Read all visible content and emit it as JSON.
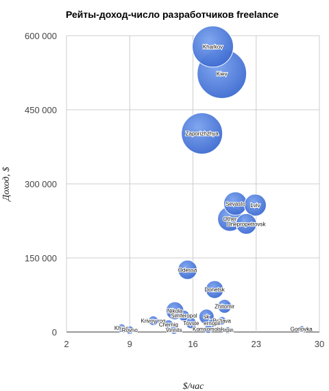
{
  "chart_data": {
    "type": "scatter",
    "variant": "bubble",
    "title": "Рейты-доход-число разработчиков freelance",
    "xlabel": "$/час",
    "ylabel": "Доход, $",
    "xlim": [
      2,
      30
    ],
    "ylim": [
      0,
      600000
    ],
    "xticks": [
      2,
      9,
      16,
      23,
      30
    ],
    "yticks": [
      0,
      150000,
      300000,
      450000,
      600000
    ],
    "ytick_labels": [
      "0",
      "150 000",
      "300 000",
      "450 000",
      "600 000"
    ],
    "grid": true,
    "legend": "none",
    "colors": {
      "bubble": "#3d6fd6",
      "bubble_light": "#6b95ea",
      "bubble_edge": "#ffffff"
    },
    "points": [
      {
        "label": "Kharkov",
        "x": 18.2,
        "y": 578000,
        "size": 30
      },
      {
        "label": "Kiev",
        "x": 19.2,
        "y": 523000,
        "size": 36
      },
      {
        "label": "Zaporizhzhya",
        "x": 17.0,
        "y": 402000,
        "size": 30
      },
      {
        "label": "Sevastopol",
        "x": 20.7,
        "y": 260000,
        "size": 17
      },
      {
        "label": "Lviv",
        "x": 22.9,
        "y": 257000,
        "size": 16
      },
      {
        "label": "Other",
        "x": 20.1,
        "y": 229000,
        "size": 18
      },
      {
        "label": "Dnepropetrovsk",
        "x": 21.9,
        "y": 219000,
        "size": 15
      },
      {
        "label": "Odessa",
        "x": 15.4,
        "y": 126000,
        "size": 14
      },
      {
        "label": "Donetsk",
        "x": 18.4,
        "y": 86000,
        "size": 13
      },
      {
        "label": "Zhitomir",
        "x": 19.5,
        "y": 52000,
        "size": 10
      },
      {
        "label": "Nikolaev",
        "x": 14.0,
        "y": 43000,
        "size": 13
      },
      {
        "label": "Simferopol",
        "x": 15.0,
        "y": 33000,
        "size": 8
      },
      {
        "label": "Ivanofrank",
        "x": 17.5,
        "y": 31000,
        "size": 11
      },
      {
        "label": "Krivoy rog",
        "x": 11.6,
        "y": 23000,
        "size": 7
      },
      {
        "label": "Poltava",
        "x": 19.2,
        "y": 23000,
        "size": 6
      },
      {
        "label": "Toystery",
        "x": 15.8,
        "y": 18000,
        "size": 8
      },
      {
        "label": "Chernigov",
        "x": 13.3,
        "y": 15000,
        "size": 7
      },
      {
        "label": "Chernopil",
        "x": 18.1,
        "y": 18000,
        "size": 6
      },
      {
        "label": "Khmelnitsk",
        "x": 8.1,
        "y": 8000,
        "size": 6
      },
      {
        "label": "Rovno",
        "x": 9.0,
        "y": 4000,
        "size": 6
      },
      {
        "label": "Vinnitsa",
        "x": 13.9,
        "y": 4000,
        "size": 6
      },
      {
        "label": "Komsomolsk",
        "x": 17.7,
        "y": 6000,
        "size": 6
      },
      {
        "label": "Irpin",
        "x": 19.9,
        "y": 4000,
        "size": 5
      },
      {
        "label": "Gorlovka",
        "x": 28.0,
        "y": 6000,
        "size": 5
      }
    ],
    "visible_labels": {
      "Kharkov": "Kharkov",
      "Kiev": "Kiev",
      "Zaporizhzhya": "Zaporizhzhya",
      "Sevastopol": "Sevasto",
      "Lviv": "Lviv",
      "Other": "Other",
      "Dnepropetrovsk": "Dnepropetrovsk",
      "Odessa": "Odessa",
      "Donetsk": "Donetsk",
      "Zhitomir": "Zhitomir",
      "Nikolaev": "Nikola",
      "Simferopol": "Simferopol",
      "Ivanofrank": "sk",
      "Krivoy rog": "Krivoy rog",
      "Poltava": "Poltava",
      "Toystery": "Tovste",
      "Chernigov": "Chernig",
      "Chernopil": "ernopil",
      "Khmelnitsk": "Khme",
      "Rovno": "Rovno",
      "Vinnitsa": "Vinnits",
      "Komsomolsk": "Komsomolsk",
      "Irpin": "Irpin",
      "Gorlovka": "Gorlovka"
    }
  }
}
